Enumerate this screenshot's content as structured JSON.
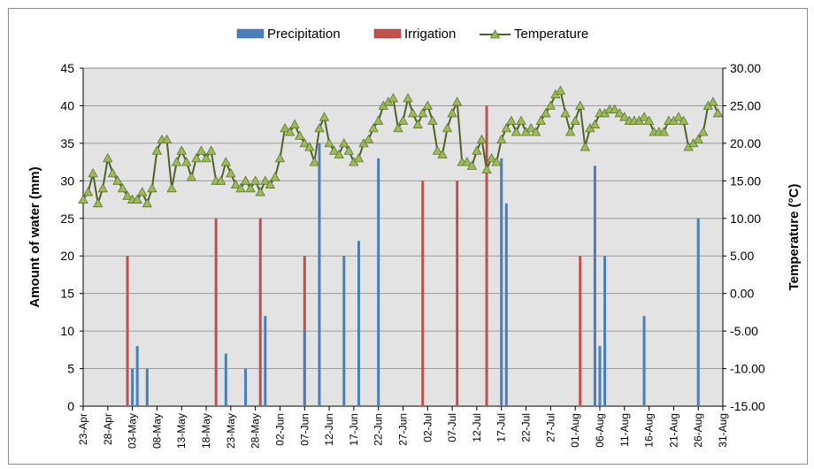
{
  "chart_data": {
    "type": "bar",
    "ylabel": "Amount of water (mm)",
    "y2label": "Temperature (°C)",
    "ylim": [
      0,
      45
    ],
    "y2lim": [
      -15,
      30
    ],
    "yticks": [
      "0",
      "5",
      "10",
      "15",
      "20",
      "25",
      "30",
      "35",
      "40",
      "45"
    ],
    "y2ticks": [
      "-15.00",
      "-10.00",
      "-5.00",
      "0.00",
      "5.00",
      "10.00",
      "15.00",
      "20.00",
      "25.00",
      "30.00"
    ],
    "x_start": "23-Apr",
    "x_end": "31-Aug",
    "xticks": [
      "23-Apr",
      "28-Apr",
      "03-May",
      "08-May",
      "13-May",
      "18-May",
      "23-May",
      "28-May",
      "02-Jun",
      "07-Jun",
      "12-Jun",
      "17-Jun",
      "22-Jun",
      "27-Jun",
      "02-Jul",
      "07-Jul",
      "12-Jul",
      "17-Jul",
      "22-Jul",
      "27-Jul",
      "01-Aug",
      "06-Aug",
      "11-Aug",
      "16-Aug",
      "21-Aug",
      "26-Aug",
      "31-Aug"
    ],
    "grid": true,
    "legend_position": "top",
    "colors": {
      "plot_bg": "#e3e3e3",
      "precipitation": "#4a7ebb",
      "irrigation": "#c0504d",
      "temperature_line": "#4f6228",
      "temperature_marker": "#9bbb59"
    },
    "series": [
      {
        "name": "Precipitation",
        "kind": "bar",
        "axis": "left",
        "points": [
          {
            "date": "03-May",
            "value": 5
          },
          {
            "date": "04-May",
            "value": 8
          },
          {
            "date": "06-May",
            "value": 5
          },
          {
            "date": "22-May",
            "value": 7
          },
          {
            "date": "26-May",
            "value": 5
          },
          {
            "date": "30-May",
            "value": 12
          },
          {
            "date": "07-Jun",
            "value": 10
          },
          {
            "date": "10-Jun",
            "value": 35
          },
          {
            "date": "15-Jun",
            "value": 20
          },
          {
            "date": "18-Jun",
            "value": 22
          },
          {
            "date": "22-Jun",
            "value": 33
          },
          {
            "date": "17-Jul",
            "value": 33
          },
          {
            "date": "18-Jul",
            "value": 27
          },
          {
            "date": "05-Aug",
            "value": 32
          },
          {
            "date": "06-Aug",
            "value": 8
          },
          {
            "date": "07-Aug",
            "value": 20
          },
          {
            "date": "15-Aug",
            "value": 12
          },
          {
            "date": "26-Aug",
            "value": 25
          }
        ]
      },
      {
        "name": "Irrigation",
        "kind": "bar",
        "axis": "left",
        "points": [
          {
            "date": "02-May",
            "value": 20
          },
          {
            "date": "20-May",
            "value": 25
          },
          {
            "date": "29-May",
            "value": 25
          },
          {
            "date": "07-Jun",
            "value": 20
          },
          {
            "date": "01-Jul",
            "value": 30
          },
          {
            "date": "08-Jul",
            "value": 30
          },
          {
            "date": "14-Jul",
            "value": 40
          },
          {
            "date": "02-Aug",
            "value": 20
          }
        ]
      },
      {
        "name": "Temperature",
        "kind": "line",
        "axis": "right",
        "start": "23-Apr",
        "values": [
          12.5,
          13.5,
          16,
          12,
          14,
          18,
          16,
          15,
          14,
          13,
          12.5,
          12.5,
          13.5,
          12,
          14,
          19,
          20.5,
          20.5,
          14,
          17.5,
          19,
          17.5,
          15.5,
          18,
          19,
          18,
          19,
          15,
          15,
          17.5,
          16,
          14.5,
          14,
          15,
          14,
          15,
          13.5,
          15,
          14.5,
          15.5,
          18,
          22,
          21.5,
          22.5,
          21,
          20,
          19.5,
          17.5,
          22,
          23.5,
          20,
          19,
          18.5,
          20,
          19,
          17.5,
          18,
          20,
          20.5,
          22,
          23,
          25,
          25.5,
          26,
          22,
          23,
          26,
          24,
          22.5,
          24,
          25,
          23,
          19,
          18.5,
          22,
          24,
          25.5,
          17.5,
          17.5,
          17,
          19,
          20.5,
          16.5,
          18,
          17.5,
          20.5,
          22,
          23,
          21.5,
          23,
          21.5,
          22,
          21.5,
          23,
          24,
          25,
          26.5,
          27,
          24,
          21.5,
          23,
          25,
          19.5,
          22,
          22.5,
          24,
          24,
          24.5,
          24.5,
          24,
          23.5,
          23,
          23,
          23,
          23.5,
          23,
          21.5,
          21.5,
          21.5,
          23,
          23,
          23.5,
          23,
          19.5,
          20,
          20.5,
          21.5,
          25,
          25.5,
          24
        ]
      }
    ]
  }
}
